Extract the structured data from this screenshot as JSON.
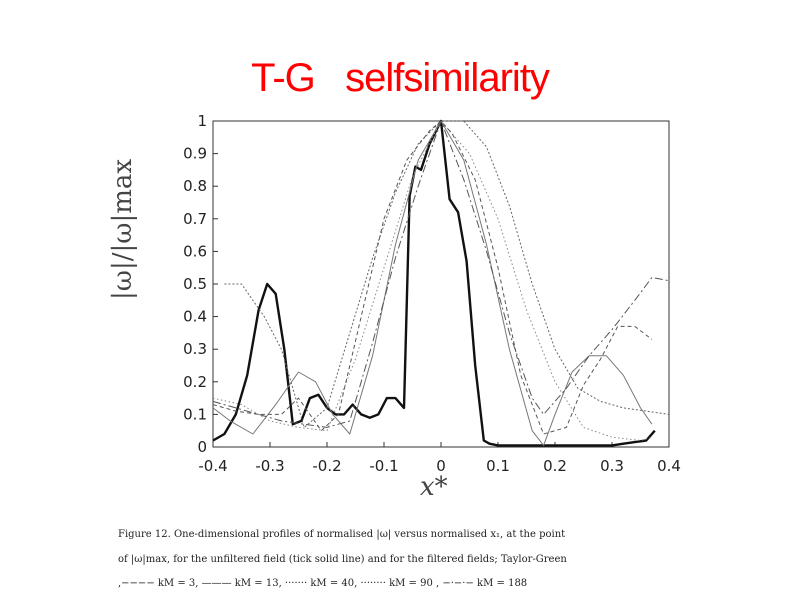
{
  "slide": {
    "title": "T-G   selfsimilarity"
  },
  "chart_data": {
    "type": "line",
    "title": "",
    "xlabel": "x*",
    "ylabel": "|ω|/|ω|max",
    "xlim": [
      -0.4,
      0.4
    ],
    "ylim": [
      0,
      1
    ],
    "xticks": [
      "-0.4",
      "-0.3",
      "-0.2",
      "-0.1",
      "0",
      "0.1",
      "0.2",
      "0.3",
      "0.4"
    ],
    "yticks": [
      "0",
      "0.1",
      "0.2",
      "0.3",
      "0.4",
      "0.5",
      "0.6",
      "0.7",
      "0.8",
      "0.9",
      "1"
    ],
    "grid": false,
    "series": [
      {
        "name": "unfiltered",
        "style": "thick-solid",
        "x": [
          -0.4,
          -0.38,
          -0.36,
          -0.34,
          -0.32,
          -0.305,
          -0.29,
          -0.275,
          -0.26,
          -0.245,
          -0.23,
          -0.215,
          -0.2,
          -0.185,
          -0.17,
          -0.155,
          -0.14,
          -0.125,
          -0.11,
          -0.095,
          -0.08,
          -0.065,
          -0.055,
          -0.045,
          -0.035,
          -0.02,
          0,
          0.015,
          0.03,
          0.045,
          0.06,
          0.075,
          0.085,
          0.1,
          0.15,
          0.2,
          0.25,
          0.3,
          0.32,
          0.34,
          0.36,
          0.375
        ],
        "y": [
          0.02,
          0.04,
          0.1,
          0.22,
          0.42,
          0.5,
          0.47,
          0.3,
          0.07,
          0.08,
          0.15,
          0.16,
          0.12,
          0.1,
          0.1,
          0.13,
          0.1,
          0.09,
          0.1,
          0.15,
          0.15,
          0.12,
          0.77,
          0.86,
          0.85,
          0.93,
          1,
          0.76,
          0.72,
          0.57,
          0.25,
          0.02,
          0.01,
          0.005,
          0.005,
          0.005,
          0.005,
          0.005,
          0.01,
          0.015,
          0.02,
          0.05
        ]
      },
      {
        "x": [
          -0.4,
          -0.37,
          -0.33,
          -0.29,
          -0.25,
          -0.22,
          -0.19,
          -0.16,
          -0.12,
          -0.08,
          -0.04,
          0,
          0.04,
          0.08,
          0.12,
          0.16,
          0.18,
          0.2,
          0.23,
          0.26,
          0.29,
          0.32,
          0.35,
          0.37
        ],
        "y": [
          0.12,
          0.08,
          0.04,
          0.13,
          0.23,
          0.2,
          0.1,
          0.04,
          0.28,
          0.62,
          0.88,
          1,
          0.88,
          0.62,
          0.3,
          0.05,
          0.005,
          0.1,
          0.23,
          0.28,
          0.28,
          0.22,
          0.12,
          0.07
        ]
      },
      {
        "x": [
          -0.4,
          -0.35,
          -0.3,
          -0.25,
          -0.2,
          -0.15,
          -0.1,
          -0.05,
          0,
          0.05,
          0.1,
          0.15,
          0.2,
          0.25,
          0.3,
          0.35,
          0.37
        ],
        "y": [
          0.15,
          0.13,
          0.08,
          0.06,
          0.05,
          0.27,
          0.55,
          0.83,
          1,
          0.9,
          0.7,
          0.42,
          0.2,
          0.06,
          0.03,
          0.02,
          0.03
        ]
      },
      {
        "x": [
          -0.38,
          -0.35,
          -0.31,
          -0.28,
          -0.24,
          -0.2,
          -0.16,
          -0.12,
          -0.08,
          -0.04,
          0,
          0.04,
          0.08,
          0.12,
          0.16,
          0.2,
          0.24,
          0.28,
          0.32,
          0.36,
          0.4
        ],
        "y": [
          0.5,
          0.5,
          0.4,
          0.3,
          0.06,
          0.12,
          0.35,
          0.58,
          0.78,
          0.93,
          1,
          1.0,
          0.92,
          0.74,
          0.5,
          0.3,
          0.18,
          0.14,
          0.12,
          0.11,
          0.1
        ]
      },
      {
        "x": [
          -0.4,
          -0.36,
          -0.32,
          -0.28,
          -0.25,
          -0.21,
          -0.18,
          -0.14,
          -0.1,
          -0.06,
          -0.02,
          0,
          0.02,
          0.06,
          0.1,
          0.14,
          0.18,
          0.22,
          0.25,
          0.28,
          0.31,
          0.34,
          0.37
        ],
        "y": [
          0.13,
          0.11,
          0.1,
          0.1,
          0.15,
          0.05,
          0.1,
          0.4,
          0.7,
          0.88,
          0.97,
          1,
          0.96,
          0.82,
          0.55,
          0.22,
          0.04,
          0.06,
          0.19,
          0.27,
          0.37,
          0.37,
          0.33
        ]
      },
      {
        "x": [
          -0.4,
          -0.36,
          -0.32,
          -0.28,
          -0.24,
          -0.2,
          -0.16,
          -0.12,
          -0.08,
          -0.04,
          0,
          0.04,
          0.08,
          0.12,
          0.16,
          0.18,
          0.22,
          0.26,
          0.3,
          0.34,
          0.37,
          0.4
        ],
        "y": [
          0.14,
          0.12,
          0.1,
          0.08,
          0.07,
          0.06,
          0.08,
          0.32,
          0.58,
          0.8,
          1,
          0.82,
          0.6,
          0.35,
          0.15,
          0.1,
          0.18,
          0.28,
          0.36,
          0.45,
          0.52,
          0.51
        ]
      }
    ]
  },
  "caption": {
    "line1": "Figure 12. One-dimensional profiles of normalised |ω| versus normalised x₁, at the point",
    "line2": "of |ω|max, for the unfiltered field (tick solid line) and for the filtered fields; Taylor-Green",
    "line3": ",−−−− kM = 3, ——— kM = 13, ······· kM = 40, ········ kM = 90 , −·−·− kM = 188"
  }
}
